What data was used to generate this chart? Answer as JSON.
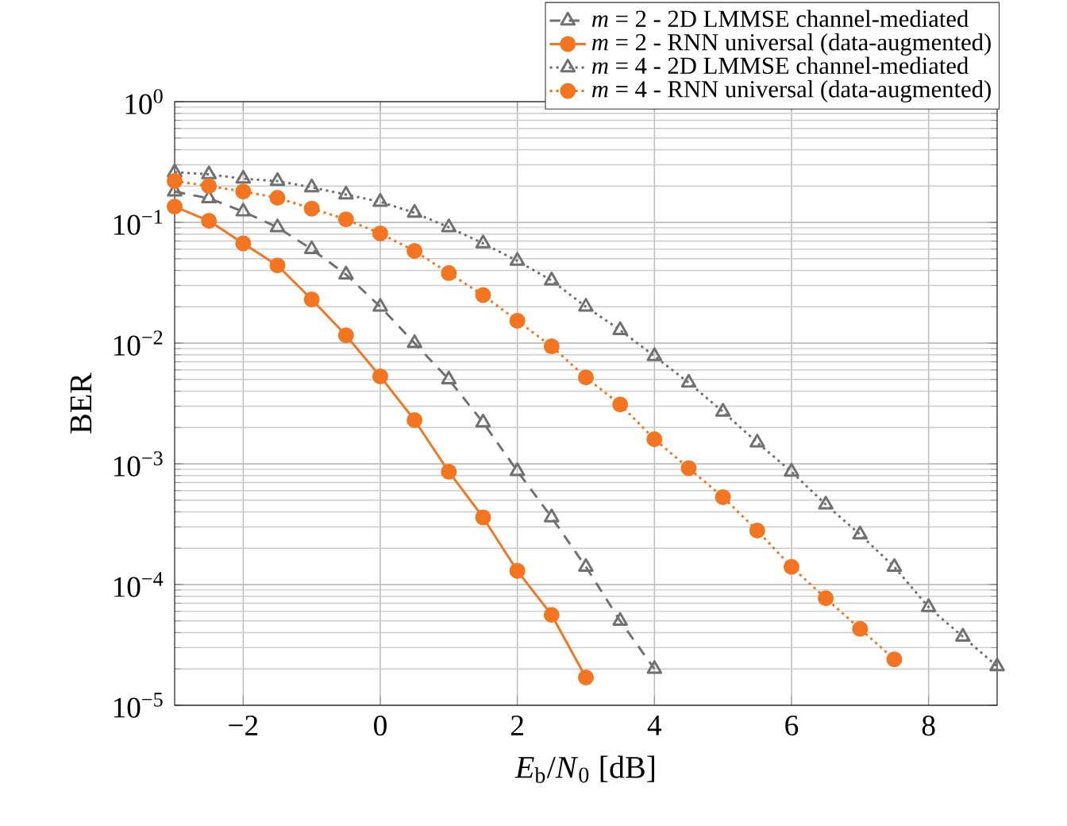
{
  "chart_data": {
    "type": "line",
    "xlabel": "*E*$_{b}$/*N*$_{0}$ [dB]",
    "ylabel": "BER",
    "log": "y",
    "grid": true,
    "legend": "top right",
    "xlim": [
      -3,
      9
    ],
    "ylim": [
      1e-05,
      1
    ],
    "xticks": [
      {
        "value": -2,
        "label": "−2"
      },
      0,
      2,
      4,
      6,
      8
    ],
    "yticks": [
      {
        "value": 1e-05,
        "label": "10$^{−5}$"
      },
      {
        "value": 0.0001,
        "label": "10$^{−4}$"
      },
      {
        "value": 0.001,
        "label": "10$^{−3}$"
      },
      {
        "value": 0.01,
        "label": "10$^{−2}$"
      },
      {
        "value": 0.1,
        "label": "10$^{−1}$"
      },
      {
        "value": 1,
        "label": "10$^{0}$"
      }
    ],
    "series": [
      {
        "name": "*m* = 2 - 2D LMMSE channel-mediated",
        "color": "#707070",
        "marker": "triangle",
        "line_style": "dashed",
        "x": [
          -3,
          -2.5,
          -2,
          -1.5,
          -1,
          -0.5,
          0,
          0.5,
          1,
          1.5,
          2,
          2.5,
          3,
          3.5,
          4
        ],
        "values": [
          0.18,
          0.158,
          0.123,
          0.091,
          0.06,
          0.037,
          0.02,
          0.01,
          0.005,
          0.0022,
          0.00087,
          0.00036,
          0.00014,
          5e-05,
          2e-05
        ]
      },
      {
        "name": "*m* = 2 - RNN universal (data-augmented)",
        "color": "#f47521",
        "marker": "circle",
        "line_style": "solid",
        "x": [
          -3,
          -2.5,
          -2,
          -1.5,
          -1,
          -0.5,
          0,
          0.5,
          1,
          1.5,
          2,
          2.5,
          3
        ],
        "values": [
          0.135,
          0.103,
          0.067,
          0.044,
          0.023,
          0.0116,
          0.0053,
          0.0023,
          0.00086,
          0.00036,
          0.00013,
          5.6e-05,
          1.7e-05
        ]
      },
      {
        "name": "*m* = 4 - 2D LMMSE channel-mediated",
        "color": "#707070",
        "marker": "triangle",
        "line_style": "dotted",
        "x": [
          -3,
          -2.5,
          -2,
          -1.5,
          -1,
          -0.5,
          0,
          0.5,
          1,
          1.5,
          2,
          2.5,
          3,
          3.5,
          4,
          4.5,
          5,
          5.5,
          6,
          6.5,
          7,
          7.5,
          8,
          8.5,
          9
        ],
        "values": [
          0.26,
          0.25,
          0.23,
          0.22,
          0.195,
          0.17,
          0.148,
          0.12,
          0.091,
          0.067,
          0.048,
          0.033,
          0.02,
          0.0128,
          0.0078,
          0.0047,
          0.0027,
          0.0015,
          0.00086,
          0.00046,
          0.00026,
          0.00014,
          6.5e-05,
          3.7e-05,
          2.1e-05
        ]
      },
      {
        "name": "*m* = 4 - RNN universal (data-augmented)",
        "color": "#f47521",
        "marker": "circle",
        "line_style": "dotted",
        "x": [
          -3,
          -2.5,
          -2,
          -1.5,
          -1,
          -0.5,
          0,
          0.5,
          1,
          1.5,
          2,
          2.5,
          3,
          3.5,
          4,
          4.5,
          5,
          5.5,
          6,
          6.5,
          7,
          7.5
        ],
        "values": [
          0.22,
          0.2,
          0.18,
          0.16,
          0.13,
          0.106,
          0.081,
          0.058,
          0.038,
          0.025,
          0.0153,
          0.0094,
          0.0052,
          0.0031,
          0.0016,
          0.00092,
          0.00053,
          0.00028,
          0.00014,
          7.7e-05,
          4.3e-05,
          2.4e-05
        ]
      }
    ]
  }
}
